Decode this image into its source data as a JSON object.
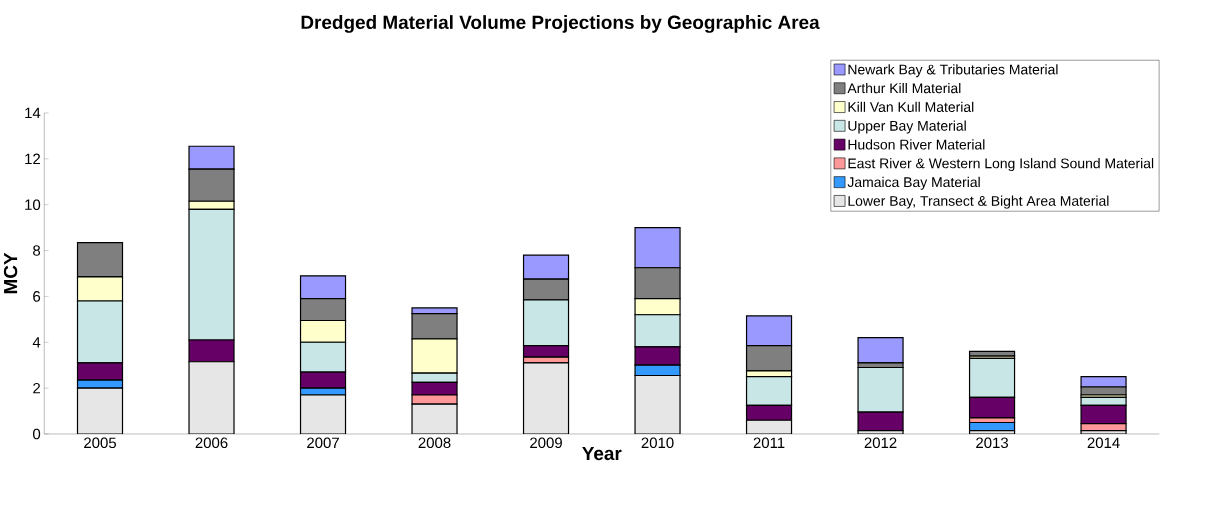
{
  "chart_data": {
    "type": "bar",
    "stacked": true,
    "title": "Dredged Material Volume Projections by Geographic Area",
    "xlabel": "Year",
    "ylabel": "MCY",
    "categories": [
      "2005",
      "2006",
      "2007",
      "2008",
      "2009",
      "2010",
      "2011",
      "2012",
      "2013",
      "2014"
    ],
    "ylim": [
      0,
      14
    ],
    "yticks": [
      0,
      2,
      4,
      6,
      8,
      10,
      12,
      14
    ],
    "grid": false,
    "legend": "top right",
    "series": [
      {
        "name": "Lower Bay, Transect & Bight Area Material",
        "color": "#e6e6e6",
        "values": [
          2.0,
          3.15,
          1.7,
          1.3,
          3.1,
          2.55,
          0.6,
          0.15,
          0.15,
          0.15
        ]
      },
      {
        "name": "Jamaica Bay Material",
        "color": "#3399ff",
        "values": [
          0.35,
          0,
          0.3,
          0,
          0,
          0.45,
          0,
          0,
          0.35,
          0
        ]
      },
      {
        "name": "East River & Western Long Island Sound Material",
        "color": "#ff9999",
        "values": [
          0,
          0,
          0,
          0.4,
          0.25,
          0,
          0,
          0,
          0.2,
          0.3
        ]
      },
      {
        "name": "Hudson River Material",
        "color": "#660066",
        "values": [
          0.75,
          0.95,
          0.7,
          0.55,
          0.5,
          0.8,
          0.65,
          0.8,
          0.9,
          0.8
        ]
      },
      {
        "name": "Upper Bay Material",
        "color": "#c8e6e6",
        "values": [
          2.7,
          5.7,
          1.3,
          0.4,
          2.0,
          1.4,
          1.25,
          1.95,
          1.7,
          0.35
        ]
      },
      {
        "name": "Kill Van Kull Material",
        "color": "#ffffcc",
        "values": [
          1.05,
          0.35,
          0.95,
          1.5,
          0,
          0.7,
          0.25,
          0,
          0.1,
          0.1
        ]
      },
      {
        "name": "Arthur Kill Material",
        "color": "#7f7f7f",
        "values": [
          1.5,
          1.4,
          0.95,
          1.1,
          0.9,
          1.35,
          1.1,
          0.2,
          0.2,
          0.35
        ]
      },
      {
        "name": "Newark Bay & Tributaries Material",
        "color": "#9999ff",
        "values": [
          0,
          1.0,
          1.0,
          0.25,
          1.05,
          1.75,
          1.3,
          1.1,
          0,
          0.45
        ]
      }
    ]
  }
}
